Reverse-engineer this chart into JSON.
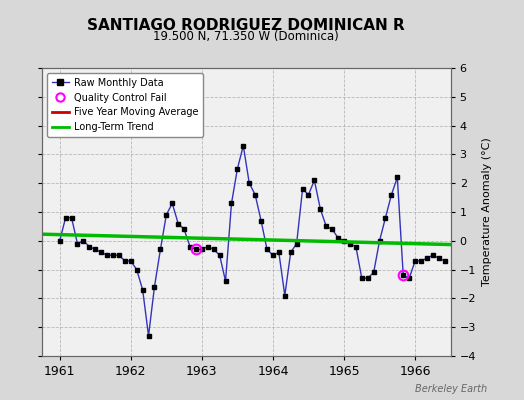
{
  "title": "SANTIAGO RODRIGUEZ DOMINICAN R",
  "subtitle": "19.500 N, 71.350 W (Dominica)",
  "ylabel": "Temperature Anomaly (°C)",
  "watermark": "Berkeley Earth",
  "background_color": "#d8d8d8",
  "plot_bg_color": "#f0f0f0",
  "ylim": [
    -4,
    6
  ],
  "yticks": [
    -4,
    -3,
    -2,
    -1,
    0,
    1,
    2,
    3,
    4,
    5,
    6
  ],
  "xlim_start": 1960.75,
  "xlim_end": 1966.5,
  "xticks": [
    1961,
    1962,
    1963,
    1964,
    1965,
    1966
  ],
  "line_color": "#3333bb",
  "marker_color": "#000000",
  "trend_color": "#00bb00",
  "moving_avg_color": "#cc0000",
  "qc_fail_color": "#ff00ff",
  "monthly_data": [
    [
      1961.0,
      0.0
    ],
    [
      1961.083,
      0.8
    ],
    [
      1961.167,
      0.8
    ],
    [
      1961.25,
      -0.1
    ],
    [
      1961.333,
      0.0
    ],
    [
      1961.417,
      -0.2
    ],
    [
      1961.5,
      -0.3
    ],
    [
      1961.583,
      -0.4
    ],
    [
      1961.667,
      -0.5
    ],
    [
      1961.75,
      -0.5
    ],
    [
      1961.833,
      -0.5
    ],
    [
      1961.917,
      -0.7
    ],
    [
      1962.0,
      -0.7
    ],
    [
      1962.083,
      -1.0
    ],
    [
      1962.167,
      -1.7
    ],
    [
      1962.25,
      -3.3
    ],
    [
      1962.333,
      -1.6
    ],
    [
      1962.417,
      -0.3
    ],
    [
      1962.5,
      0.9
    ],
    [
      1962.583,
      1.3
    ],
    [
      1962.667,
      0.6
    ],
    [
      1962.75,
      0.4
    ],
    [
      1962.833,
      -0.2
    ],
    [
      1962.917,
      -0.3
    ],
    [
      1963.0,
      -0.3
    ],
    [
      1963.083,
      -0.2
    ],
    [
      1963.167,
      -0.3
    ],
    [
      1963.25,
      -0.5
    ],
    [
      1963.333,
      -1.4
    ],
    [
      1963.417,
      1.3
    ],
    [
      1963.5,
      2.5
    ],
    [
      1963.583,
      3.3
    ],
    [
      1963.667,
      2.0
    ],
    [
      1963.75,
      1.6
    ],
    [
      1963.833,
      0.7
    ],
    [
      1963.917,
      -0.3
    ],
    [
      1964.0,
      -0.5
    ],
    [
      1964.083,
      -0.4
    ],
    [
      1964.167,
      -1.9
    ],
    [
      1964.25,
      -0.4
    ],
    [
      1964.333,
      -0.1
    ],
    [
      1964.417,
      1.8
    ],
    [
      1964.5,
      1.6
    ],
    [
      1964.583,
      2.1
    ],
    [
      1964.667,
      1.1
    ],
    [
      1964.75,
      0.5
    ],
    [
      1964.833,
      0.4
    ],
    [
      1964.917,
      0.1
    ],
    [
      1965.0,
      0.0
    ],
    [
      1965.083,
      -0.1
    ],
    [
      1965.167,
      -0.2
    ],
    [
      1965.25,
      -1.3
    ],
    [
      1965.333,
      -1.3
    ],
    [
      1965.417,
      -1.1
    ],
    [
      1965.5,
      0.0
    ],
    [
      1965.583,
      0.8
    ],
    [
      1965.667,
      1.6
    ],
    [
      1965.75,
      2.2
    ],
    [
      1965.833,
      -1.2
    ],
    [
      1965.917,
      -1.3
    ],
    [
      1966.0,
      -0.7
    ],
    [
      1966.083,
      -0.7
    ],
    [
      1966.167,
      -0.6
    ],
    [
      1966.25,
      -0.5
    ],
    [
      1966.333,
      -0.6
    ],
    [
      1966.417,
      -0.7
    ]
  ],
  "qc_fail_points": [
    [
      1962.917,
      -0.3
    ],
    [
      1965.833,
      -1.2
    ]
  ],
  "trend_line_x": [
    1960.75,
    1966.5
  ],
  "trend_line_y": [
    0.23,
    -0.13
  ]
}
